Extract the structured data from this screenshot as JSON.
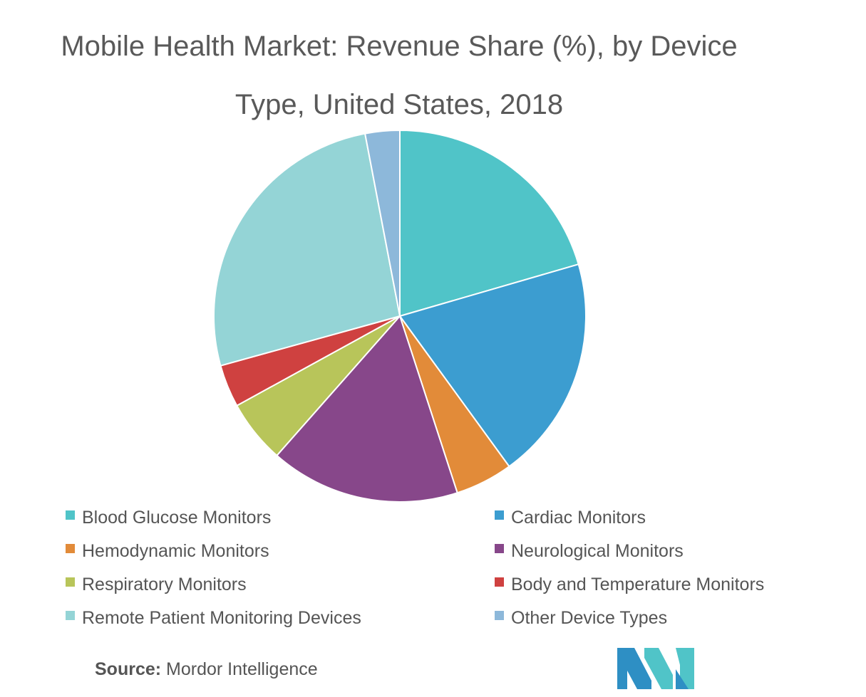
{
  "chart_data": {
    "type": "pie",
    "title": "Mobile Health Market: Revenue Share (%), by Device Type, United States, 2018",
    "title_lines": [
      "Mobile Health Market: Revenue Share (%), by Device",
      "Type, United States, 2018"
    ],
    "slices": [
      {
        "label": "Blood Glucose Monitors",
        "value": 20.5,
        "color": "#50C4C8"
      },
      {
        "label": "Cardiac Monitors",
        "value": 19.5,
        "color": "#3C9DD0"
      },
      {
        "label": "Hemodynamic Monitors",
        "value": 5.0,
        "color": "#E28B39"
      },
      {
        "label": "Neurological Monitors",
        "value": 16.5,
        "color": "#87478A"
      },
      {
        "label": "Respiratory Monitors",
        "value": 5.5,
        "color": "#B8C55A"
      },
      {
        "label": "Body and Temperature Monitors",
        "value": 3.7,
        "color": "#CF4140"
      },
      {
        "label": "Remote Patient Monitoring Devices",
        "value": 26.3,
        "color": "#94D4D6"
      },
      {
        "label": "Other Device Types",
        "value": 3.0,
        "color": "#8DB8DA"
      }
    ],
    "legend_position": "bottom"
  },
  "source": {
    "label": "Source:",
    "text": " Mordor Intelligence"
  },
  "logo": {
    "name": "mordor-intelligence-logo",
    "colors": [
      "#2E8FC4",
      "#50C4C8"
    ]
  }
}
